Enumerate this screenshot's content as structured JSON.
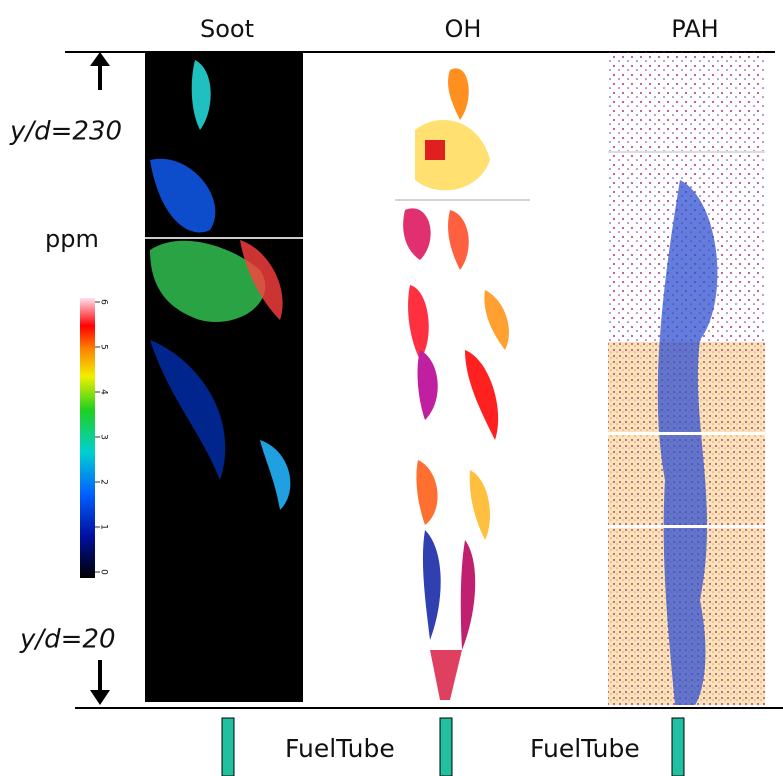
{
  "columns": [
    "Soot",
    "OH",
    "PAH"
  ],
  "labels": {
    "top": "y/d=230",
    "unit": "ppm",
    "bottom": "y/d=20"
  },
  "colorbar": {
    "lim": [
      0,
      6
    ],
    "ticks": [
      0,
      1,
      2,
      3,
      4,
      5,
      6
    ]
  },
  "fuel_tubes": [
    "FuelTube",
    "FuelTube"
  ]
}
